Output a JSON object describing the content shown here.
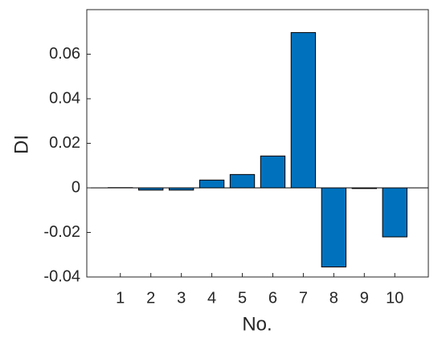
{
  "chart_data": {
    "type": "bar",
    "x": [
      1,
      2,
      3,
      4,
      5,
      6,
      7,
      8,
      9,
      10
    ],
    "values": [
      0.0001,
      -0.001,
      -0.001,
      0.0035,
      0.006,
      0.0143,
      0.0697,
      -0.0355,
      -0.0003,
      -0.022
    ],
    "color": "#0072bd",
    "xlabel": "No.",
    "ylabel": "DI",
    "xlim": [
      -0.1,
      11.1
    ],
    "xticks": [
      1,
      2,
      3,
      4,
      5,
      6,
      7,
      8,
      9,
      10
    ],
    "ylim": [
      -0.04,
      0.08
    ],
    "yticks": [
      -0.04,
      -0.02,
      0,
      0.02,
      0.04,
      0.06
    ]
  }
}
